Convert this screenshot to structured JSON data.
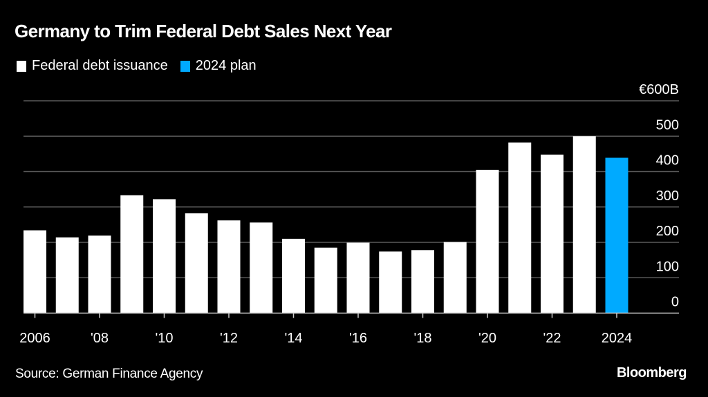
{
  "header": {
    "title": "Germany to Trim Federal Debt Sales Next Year"
  },
  "legend": [
    {
      "label": "Federal debt issuance",
      "color": "#ffffff"
    },
    {
      "label": "2024 plan",
      "color": "#00aaff"
    }
  ],
  "footer": {
    "source": "Source: German Finance Agency",
    "brand": "Bloomberg"
  },
  "chart_data": {
    "type": "bar",
    "title": "Germany to Trim Federal Debt Sales Next Year",
    "xlabel": "",
    "ylabel": "",
    "y_unit_label": "€600B",
    "ylim": [
      0,
      600
    ],
    "yticks": [
      0,
      100,
      200,
      300,
      400,
      500,
      600
    ],
    "ytick_labels": [
      "0",
      "100",
      "200",
      "300",
      "400",
      "500",
      "€600B"
    ],
    "grid": true,
    "y_axis_position": "right",
    "legend_position": "top-left",
    "categories": [
      "2006",
      "2007",
      "2008",
      "2009",
      "2010",
      "2011",
      "2012",
      "2013",
      "2014",
      "2015",
      "2016",
      "2017",
      "2018",
      "2019",
      "2020",
      "2021",
      "2022",
      "2023",
      "2024"
    ],
    "xtick_labels": [
      {
        "category": "2006",
        "label": "2006"
      },
      {
        "category": "2008",
        "label": "'08"
      },
      {
        "category": "2010",
        "label": "'10"
      },
      {
        "category": "2012",
        "label": "'12"
      },
      {
        "category": "2014",
        "label": "'14"
      },
      {
        "category": "2016",
        "label": "'16"
      },
      {
        "category": "2018",
        "label": "'18"
      },
      {
        "category": "2020",
        "label": "'20"
      },
      {
        "category": "2022",
        "label": "'22"
      },
      {
        "category": "2024",
        "label": "2024"
      }
    ],
    "series": [
      {
        "name": "Federal debt issuance",
        "color": "#ffffff",
        "values": [
          234,
          214,
          219,
          333,
          322,
          282,
          262,
          256,
          210,
          185,
          199,
          174,
          178,
          201,
          405,
          482,
          448,
          500,
          null
        ]
      },
      {
        "name": "2024 plan",
        "color": "#00aaff",
        "values": [
          null,
          null,
          null,
          null,
          null,
          null,
          null,
          null,
          null,
          null,
          null,
          null,
          null,
          null,
          null,
          null,
          null,
          null,
          439
        ]
      }
    ]
  }
}
